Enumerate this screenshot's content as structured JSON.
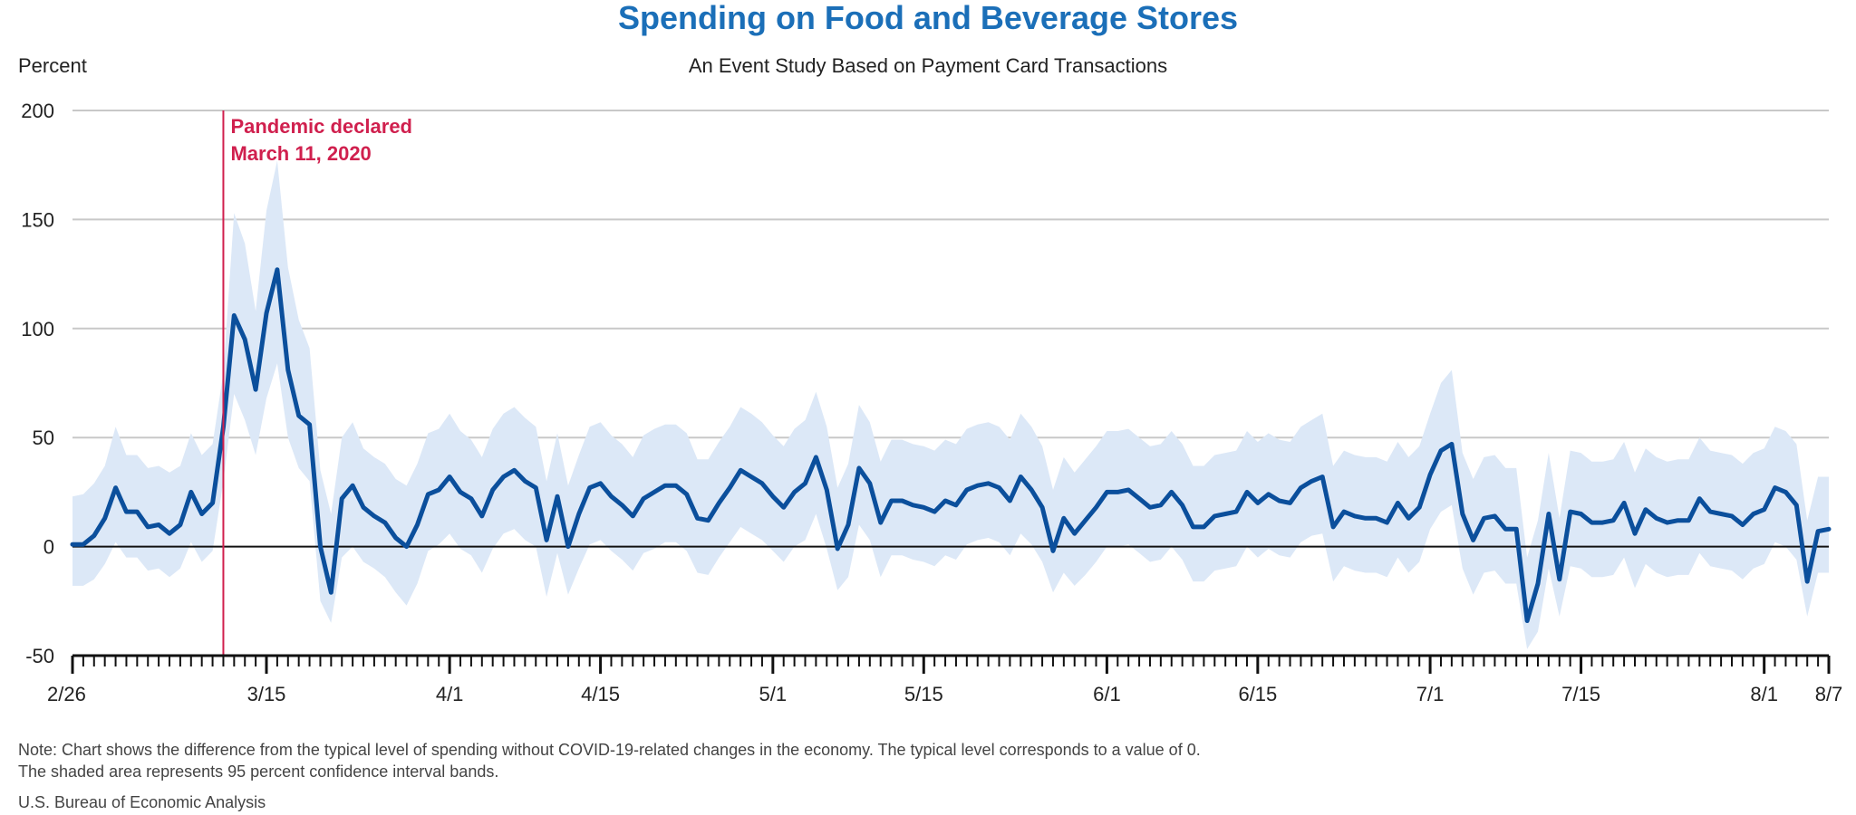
{
  "chart_data": {
    "type": "line",
    "title": "Spending on Food and Beverage Stores",
    "subtitle": "An Event Study Based on Payment Card Transactions",
    "ylabel": "Percent",
    "ylim": [
      -50,
      200
    ],
    "yticks": [
      -50,
      0,
      50,
      100,
      150,
      200
    ],
    "x_start": "2/26",
    "x_end": "8/7",
    "num_days": 164,
    "xticks": [
      {
        "label": "2/26",
        "day": 0
      },
      {
        "label": "3/15",
        "day": 18
      },
      {
        "label": "4/1",
        "day": 35
      },
      {
        "label": "4/15",
        "day": 49
      },
      {
        "label": "5/1",
        "day": 65
      },
      {
        "label": "5/15",
        "day": 79
      },
      {
        "label": "6/1",
        "day": 96
      },
      {
        "label": "6/15",
        "day": 110
      },
      {
        "label": "7/1",
        "day": 126
      },
      {
        "label": "7/15",
        "day": 140
      },
      {
        "label": "8/1",
        "day": 157
      },
      {
        "label": "8/7",
        "day": 163
      }
    ],
    "grid": true,
    "series": [
      {
        "color": "#0b4f9c",
        "values": [
          1,
          1,
          5,
          13,
          27,
          16,
          16,
          9,
          10,
          6,
          10,
          25,
          15,
          20,
          55,
          106,
          95,
          72,
          107,
          127,
          81,
          60,
          56,
          0,
          -21,
          22,
          28,
          18,
          14,
          11,
          4,
          0,
          10,
          24,
          26,
          32,
          25,
          22,
          14,
          26,
          32,
          35,
          30,
          27,
          3,
          23,
          0,
          15,
          27,
          29,
          23,
          19,
          14,
          22,
          25,
          28,
          28,
          24,
          13,
          12,
          20,
          27,
          35,
          32,
          29,
          23,
          18,
          25,
          29,
          41,
          26,
          -1,
          10,
          36,
          29,
          11,
          21,
          21,
          19,
          18,
          16,
          21,
          19,
          26,
          28,
          29,
          27,
          21,
          32,
          26,
          18,
          -2,
          13,
          6,
          12,
          18,
          25,
          25,
          26,
          22,
          18,
          19,
          25,
          19,
          9,
          9,
          14,
          15,
          16,
          25,
          20,
          24,
          21,
          20,
          27,
          30,
          32,
          9,
          16,
          14,
          13,
          13,
          11,
          20,
          13,
          18,
          33,
          44,
          47,
          15,
          3,
          13,
          14,
          8,
          8,
          -34,
          -17,
          15,
          -15,
          16,
          15,
          11,
          11,
          12,
          20,
          6,
          17,
          13,
          11,
          12,
          12,
          22,
          16,
          15,
          14,
          10,
          15,
          17,
          27,
          25,
          19,
          -16,
          7,
          8
        ]
      }
    ],
    "band": {
      "color": "#dce8f7",
      "upper": [
        23,
        24,
        29,
        37,
        55,
        42,
        42,
        36,
        37,
        34,
        37,
        52,
        42,
        47,
        80,
        153,
        139,
        108,
        154,
        177,
        128,
        104,
        91,
        35,
        15,
        50,
        57,
        45,
        41,
        38,
        31,
        28,
        38,
        52,
        54,
        61,
        53,
        49,
        41,
        54,
        61,
        64,
        59,
        55,
        30,
        52,
        28,
        42,
        55,
        57,
        51,
        47,
        41,
        51,
        54,
        56,
        56,
        52,
        40,
        40,
        48,
        55,
        64,
        61,
        57,
        51,
        46,
        54,
        58,
        71,
        55,
        27,
        38,
        65,
        57,
        39,
        49,
        49,
        47,
        46,
        44,
        49,
        47,
        54,
        56,
        57,
        55,
        49,
        61,
        55,
        46,
        26,
        41,
        34,
        40,
        46,
        53,
        53,
        54,
        50,
        46,
        47,
        53,
        47,
        37,
        37,
        42,
        43,
        44,
        53,
        48,
        52,
        49,
        48,
        55,
        58,
        61,
        37,
        44,
        42,
        41,
        41,
        39,
        48,
        41,
        46,
        61,
        75,
        81,
        43,
        31,
        41,
        42,
        36,
        36,
        -5,
        12,
        43,
        13,
        44,
        43,
        39,
        39,
        40,
        48,
        34,
        45,
        41,
        39,
        40,
        40,
        50,
        44,
        43,
        42,
        38,
        43,
        45,
        55,
        53,
        47,
        12,
        32,
        32
      ],
      "lower": [
        -18,
        -18,
        -15,
        -8,
        2,
        -5,
        -5,
        -11,
        -10,
        -14,
        -10,
        2,
        -7,
        -2,
        30,
        70,
        58,
        42,
        68,
        84,
        50,
        36,
        30,
        -25,
        -35,
        -5,
        0,
        -7,
        -10,
        -14,
        -21,
        -27,
        -17,
        -2,
        1,
        6,
        -1,
        -4,
        -12,
        -1,
        6,
        8,
        3,
        0,
        -23,
        -3,
        -22,
        -10,
        1,
        3,
        -2,
        -6,
        -11,
        -3,
        -1,
        2,
        2,
        -2,
        -12,
        -13,
        -5,
        2,
        9,
        6,
        3,
        -2,
        -7,
        0,
        3,
        15,
        -1,
        -20,
        -14,
        10,
        3,
        -14,
        -4,
        -4,
        -6,
        -7,
        -9,
        -4,
        -6,
        1,
        3,
        4,
        2,
        -4,
        6,
        1,
        -7,
        -21,
        -12,
        -18,
        -13,
        -7,
        0,
        0,
        1,
        -3,
        -7,
        -6,
        0,
        -6,
        -16,
        -16,
        -11,
        -10,
        -9,
        0,
        -5,
        -1,
        -4,
        -5,
        2,
        5,
        6,
        -16,
        -9,
        -11,
        -12,
        -12,
        -14,
        -5,
        -12,
        -7,
        8,
        16,
        19,
        -10,
        -22,
        -12,
        -11,
        -17,
        -17,
        -47,
        -39,
        -10,
        -32,
        -9,
        -10,
        -14,
        -14,
        -13,
        -5,
        -19,
        -8,
        -12,
        -14,
        -13,
        -13,
        -3,
        -9,
        -10,
        -11,
        -15,
        -10,
        -8,
        2,
        0,
        -6,
        -32,
        -12,
        -12
      ]
    },
    "annotation": {
      "day": 14,
      "line1": "Pandemic declared",
      "line2": "March 11, 2020",
      "color": "#d0204e"
    }
  },
  "notes": {
    "line1": "Note: Chart shows the difference from the typical level of spending without COVID-19-related changes in the economy. The typical level corresponds to a value of 0.",
    "line2": "The shaded area represents 95 percent confidence interval bands.",
    "source": "U.S. Bureau of Economic Analysis"
  }
}
